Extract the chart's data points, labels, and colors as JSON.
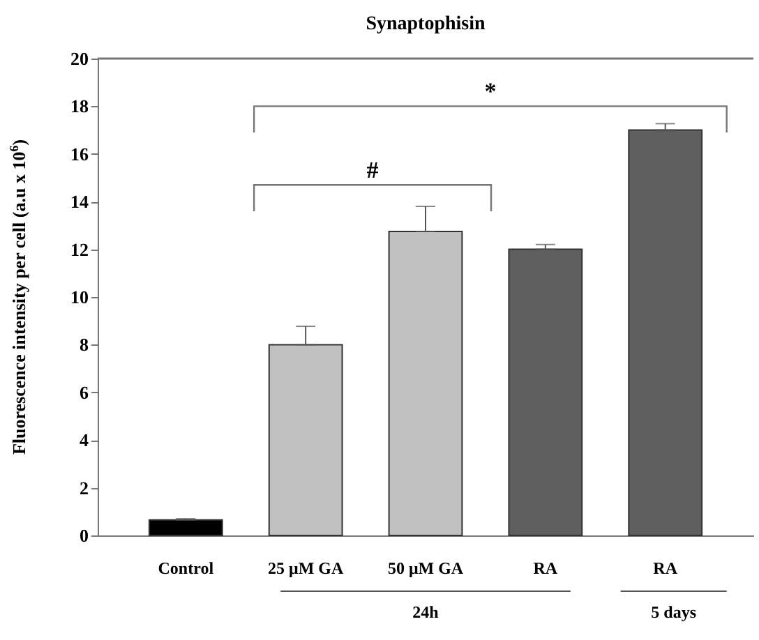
{
  "chart_data": {
    "type": "bar",
    "title": "Synaptophisin",
    "ylabel": "Fluorescence intensity per cell (a.u x 10$^{6}$)",
    "categories": [
      "Control",
      "25 μM GA",
      "50 μM GA",
      "RA",
      "RA"
    ],
    "values": [
      0.65,
      8.0,
      12.75,
      12.0,
      17.0
    ],
    "colors": [
      "#000000",
      "#c0c0c0",
      "#c0c0c0",
      "#5f5f5f",
      "#5f5f5f"
    ],
    "errors": [
      [
        0.65,
        0.7
      ],
      [
        8.0,
        8.77
      ],
      [
        12.75,
        13.8
      ],
      [
        12.0,
        12.2
      ],
      [
        17.0,
        17.27
      ]
    ],
    "ylim": [
      0,
      20
    ],
    "yticks": [
      0,
      2,
      4,
      6,
      8,
      10,
      12,
      14,
      16,
      18,
      20
    ],
    "annotations": [
      "#",
      "*",
      "24h",
      "5 days"
    ]
  }
}
